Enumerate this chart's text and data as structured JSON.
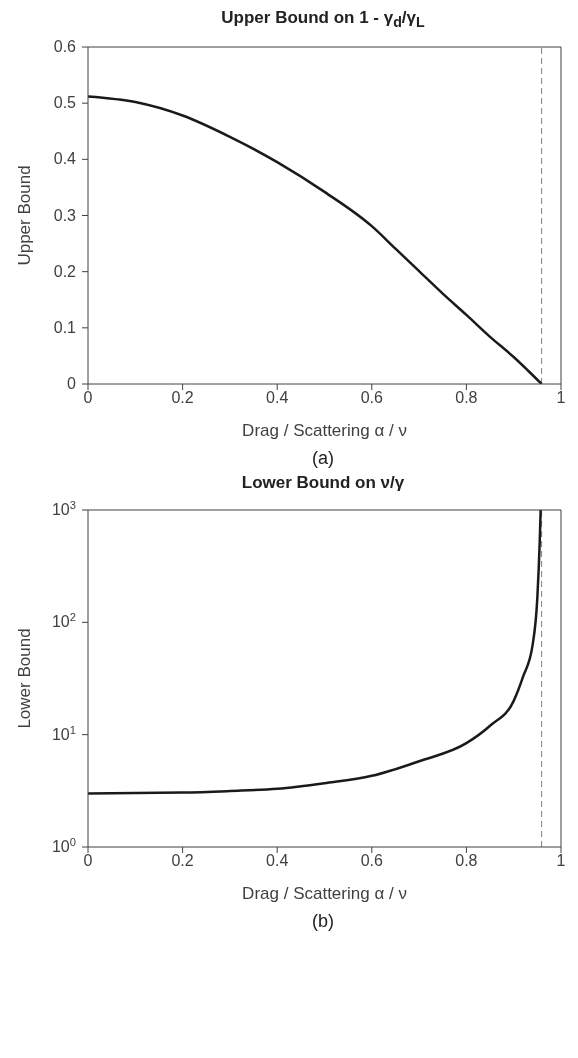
{
  "chart_data": [
    {
      "type": "line",
      "title": "Upper Bound on 1 - γ$_{d}$/γ$_{L}$",
      "xlabel": "Drag / Scattering α / ν",
      "ylabel": "Upper Bound",
      "annotations": [
        "(a)"
      ],
      "x": [
        0,
        0.1,
        0.2,
        0.3,
        0.4,
        0.5,
        0.6,
        0.65,
        0.7,
        0.75,
        0.8,
        0.85,
        0.9,
        0.93,
        0.959
      ],
      "series": [
        {
          "color": "#1a1a1a",
          "values": [
            0.512,
            0.502,
            0.478,
            0.44,
            0.395,
            0.342,
            0.281,
            0.241,
            0.201,
            0.161,
            0.123,
            0.084,
            0.048,
            0.024,
            0
          ]
        }
      ],
      "xlim": [
        0,
        1
      ],
      "xticks": [
        0,
        0.2,
        0.4,
        0.6,
        0.8,
        1
      ],
      "ylim": [
        0,
        0.6
      ],
      "yticks": [
        0,
        0.1,
        0.2,
        0.3,
        0.4,
        0.5,
        0.6
      ],
      "ref_lines": [
        {
          "axis": "x",
          "value": 0.959,
          "color": "#808080",
          "line_style": "dashed"
        }
      ],
      "grid": false,
      "legend": false,
      "marker": "none",
      "line_style": "solid"
    },
    {
      "type": "line",
      "title": "Lower Bound on ν/γ",
      "xlabel": "Drag / Scattering α / ν",
      "ylabel": "Lower Bound",
      "annotations": [
        "(b)"
      ],
      "x": [
        0,
        0.2,
        0.3,
        0.4,
        0.5,
        0.6,
        0.7,
        0.8,
        0.85,
        0.9,
        0.92,
        0.94,
        0.95,
        0.955,
        0.957
      ],
      "series": [
        {
          "color": "#1a1a1a",
          "values": [
            3,
            3.05,
            3.15,
            3.3,
            3.7,
            4.3,
            5.8,
            8.4,
            12,
            20,
            33,
            63,
            167,
            520,
            1000
          ]
        }
      ],
      "xlim": [
        0,
        1
      ],
      "xticks": [
        0,
        0.2,
        0.4,
        0.6,
        0.8,
        1
      ],
      "ylim": [
        1,
        1000
      ],
      "log": "y",
      "yticks": [
        {
          "value": 1,
          "label": "10$^{0}$"
        },
        {
          "value": 10,
          "label": "10$^{1}$"
        },
        {
          "value": 100,
          "label": "10$^{2}$"
        },
        {
          "value": 1000,
          "label": "10$^{3}$"
        }
      ],
      "ref_lines": [
        {
          "axis": "x",
          "value": 0.959,
          "color": "#808080",
          "line_style": "dashed"
        }
      ],
      "grid": false,
      "legend": false,
      "marker": "none",
      "line_style": "solid"
    }
  ]
}
